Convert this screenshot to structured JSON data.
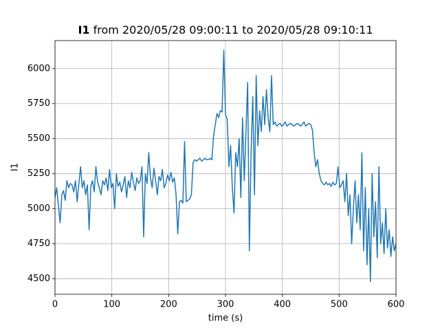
{
  "chart_data": {
    "type": "line",
    "title": [
      "I1",
      "from 2020/05/28 09:00:11 to 2020/05/28 09:10:11"
    ],
    "xlabel": "time (s)",
    "ylabel": "I1",
    "x": [
      0,
      3,
      6,
      9,
      12,
      15,
      18,
      21,
      24,
      27,
      30,
      33,
      36,
      39,
      42,
      45,
      48,
      51,
      54,
      57,
      60,
      63,
      66,
      69,
      72,
      75,
      78,
      81,
      84,
      87,
      90,
      93,
      96,
      99,
      102,
      105,
      108,
      111,
      114,
      117,
      120,
      123,
      126,
      129,
      132,
      135,
      138,
      141,
      144,
      147,
      150,
      153,
      156,
      159,
      162,
      165,
      168,
      171,
      174,
      177,
      180,
      183,
      186,
      189,
      192,
      195,
      198,
      201,
      204,
      207,
      210,
      213,
      216,
      219,
      222,
      225,
      228,
      231,
      234,
      237,
      240,
      243,
      246,
      249,
      252,
      255,
      258,
      261,
      264,
      267,
      270,
      273,
      276,
      279,
      282,
      285,
      288,
      291,
      294,
      297,
      300,
      303,
      306,
      309,
      312,
      315,
      318,
      321,
      324,
      327,
      330,
      333,
      336,
      339,
      342,
      345,
      348,
      351,
      354,
      357,
      360,
      363,
      366,
      369,
      372,
      375,
      378,
      381,
      384,
      387,
      390,
      393,
      396,
      399,
      402,
      405,
      408,
      411,
      414,
      417,
      420,
      423,
      426,
      429,
      432,
      435,
      438,
      441,
      444,
      447,
      450,
      453,
      456,
      459,
      462,
      465,
      468,
      471,
      474,
      477,
      480,
      483,
      486,
      489,
      492,
      495,
      498,
      501,
      504,
      507,
      510,
      513,
      516,
      519,
      522,
      525,
      528,
      531,
      534,
      537,
      540,
      543,
      546,
      549,
      552,
      555,
      558,
      561,
      564,
      567,
      570,
      573,
      576,
      579,
      582,
      585,
      588,
      591,
      594,
      597,
      600
    ],
    "series": [
      {
        "name": "I1",
        "color": "#1f77b4",
        "values": [
          5080,
          5150,
          5020,
          4900,
          5100,
          5130,
          5060,
          5200,
          5150,
          5180,
          5170,
          5120,
          5200,
          5050,
          5180,
          5300,
          5150,
          5200,
          5100,
          5170,
          4850,
          5160,
          5200,
          5120,
          5300,
          5190,
          5150,
          5100,
          5200,
          5170,
          5220,
          5130,
          5280,
          5150,
          5180,
          5000,
          5250,
          5160,
          5190,
          5120,
          5170,
          5230,
          5080,
          5200,
          5150,
          5260,
          5190,
          5130,
          5220,
          5180,
          5200,
          5300,
          4800,
          5250,
          5180,
          5400,
          5220,
          5150,
          5290,
          5200,
          5100,
          5230,
          5200,
          5280,
          5150,
          5180,
          5240,
          5200,
          5260,
          5190,
          5220,
          5100,
          4820,
          5050,
          5060,
          5040,
          5480,
          5050,
          5060,
          5070,
          5100,
          5330,
          5350,
          5340,
          5350,
          5360,
          5340,
          5350,
          5360,
          5350,
          5350,
          5360,
          5350,
          5520,
          5600,
          5680,
          5650,
          5700,
          5690,
          6130,
          5670,
          5640,
          5300,
          5450,
          5150,
          4970,
          5400,
          5300,
          5500,
          5080,
          5650,
          5200,
          5550,
          5900,
          4700,
          5400,
          5800,
          5100,
          5950,
          5450,
          5700,
          5550,
          5800,
          5600,
          5850,
          5650,
          5550,
          5950,
          5600,
          5620,
          5590,
          5600,
          5610,
          5590,
          5600,
          5620,
          5590,
          5600,
          5610,
          5600,
          5590,
          5600,
          5610,
          5600,
          5590,
          5600,
          5620,
          5590,
          5600,
          5610,
          5600,
          5560,
          5400,
          5300,
          5350,
          5250,
          5200,
          5180,
          5170,
          5190,
          5170,
          5180,
          5160,
          5190,
          5170,
          5180,
          5300,
          5150,
          5170,
          5200,
          5050,
          5250,
          4950,
          5100,
          4750,
          5000,
          5200,
          4900,
          5100,
          4850,
          5400,
          4700,
          5150,
          4600,
          5000,
          4480,
          5250,
          4800,
          5050,
          4650,
          5300,
          4750,
          4900,
          4680,
          5000,
          4720,
          4850,
          4660,
          4800,
          4700,
          4750
        ]
      }
    ],
    "xlim": [
      0,
      600
    ],
    "xticks": [
      0,
      100,
      200,
      300,
      400,
      500,
      600
    ],
    "ylim": [
      4390,
      6200
    ],
    "yticks": [
      4500,
      4750,
      5000,
      5250,
      5500,
      5750,
      6000
    ],
    "grid": true
  }
}
